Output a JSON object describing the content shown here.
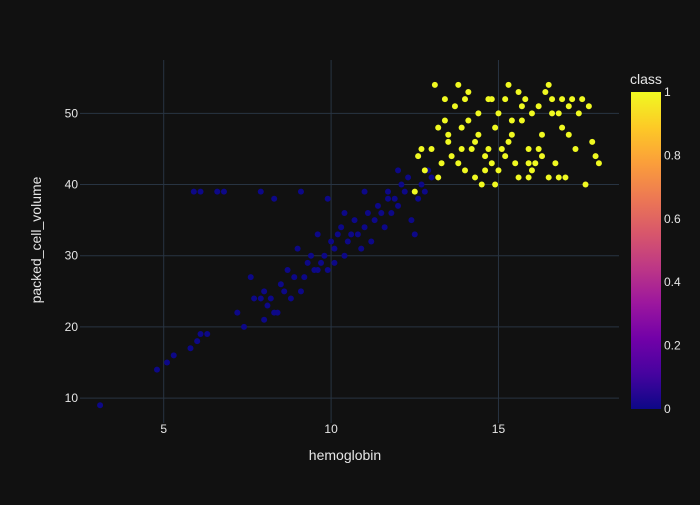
{
  "chart_data": {
    "type": "scatter",
    "title": "",
    "xlabel": "hemoglobin",
    "ylabel": "packed_cell_volume",
    "xlim": [
      2.5,
      18.6
    ],
    "ylim": [
      6.5,
      57.5
    ],
    "x_ticks": [
      5,
      10,
      15
    ],
    "y_ticks": [
      10,
      20,
      30,
      40,
      50
    ],
    "grid": true,
    "colorbar": {
      "title": "class",
      "ticks": [
        0,
        0.2,
        0.4,
        0.6,
        0.8,
        1
      ],
      "colors": [
        "#0d0887",
        "#46039f",
        "#7201a8",
        "#9c179e",
        "#bd3786",
        "#d8576b",
        "#ed7953",
        "#fb9f3a",
        "#fdca26",
        "#f0f921"
      ]
    },
    "series": [
      {
        "class": 0,
        "color": "#0d0887",
        "points": [
          [
            3.1,
            9
          ],
          [
            4.8,
            14
          ],
          [
            5.1,
            15
          ],
          [
            5.3,
            16
          ],
          [
            5.8,
            17
          ],
          [
            6.0,
            18
          ],
          [
            6.1,
            19
          ],
          [
            6.3,
            19
          ],
          [
            5.9,
            39
          ],
          [
            6.1,
            39
          ],
          [
            6.6,
            39
          ],
          [
            6.8,
            39
          ],
          [
            7.2,
            22
          ],
          [
            7.4,
            20
          ],
          [
            7.6,
            27
          ],
          [
            7.7,
            24
          ],
          [
            7.9,
            24
          ],
          [
            8.0,
            21
          ],
          [
            8.0,
            25
          ],
          [
            8.1,
            23
          ],
          [
            8.2,
            24
          ],
          [
            8.3,
            22
          ],
          [
            8.4,
            22
          ],
          [
            8.5,
            26
          ],
          [
            8.6,
            25
          ],
          [
            8.7,
            28
          ],
          [
            8.8,
            24
          ],
          [
            8.9,
            27
          ],
          [
            9.0,
            31
          ],
          [
            9.1,
            25
          ],
          [
            9.2,
            27
          ],
          [
            9.3,
            29
          ],
          [
            9.4,
            30
          ],
          [
            9.5,
            28
          ],
          [
            9.6,
            28
          ],
          [
            9.7,
            29
          ],
          [
            9.8,
            30
          ],
          [
            9.9,
            28
          ],
          [
            10.0,
            32
          ],
          [
            10.1,
            31
          ],
          [
            10.2,
            33
          ],
          [
            10.3,
            34
          ],
          [
            10.4,
            30
          ],
          [
            10.5,
            32
          ],
          [
            10.6,
            33
          ],
          [
            10.7,
            35
          ],
          [
            10.8,
            33
          ],
          [
            10.9,
            31
          ],
          [
            11.0,
            34
          ],
          [
            11.1,
            36
          ],
          [
            11.2,
            32
          ],
          [
            11.3,
            35
          ],
          [
            11.4,
            37
          ],
          [
            11.5,
            36
          ],
          [
            11.6,
            34
          ],
          [
            11.7,
            38
          ],
          [
            11.8,
            36
          ],
          [
            11.9,
            38
          ],
          [
            12.0,
            37
          ],
          [
            12.1,
            40
          ],
          [
            12.2,
            39
          ],
          [
            12.3,
            41
          ],
          [
            12.4,
            35
          ],
          [
            12.5,
            33
          ],
          [
            12.6,
            38
          ],
          [
            12.7,
            40
          ],
          [
            12.8,
            39
          ],
          [
            12.9,
            42
          ],
          [
            13.0,
            41
          ],
          [
            9.9,
            38
          ],
          [
            10.4,
            36
          ],
          [
            11.0,
            39
          ],
          [
            9.6,
            33
          ],
          [
            10.1,
            29
          ],
          [
            8.3,
            38
          ],
          [
            7.9,
            39
          ],
          [
            9.1,
            39
          ],
          [
            11.7,
            39
          ],
          [
            12.0,
            42
          ],
          [
            12.6,
            44
          ]
        ]
      },
      {
        "class": 1,
        "color": "#f0f921",
        "points": [
          [
            12.5,
            39
          ],
          [
            12.6,
            44
          ],
          [
            12.7,
            45
          ],
          [
            12.8,
            42
          ],
          [
            13.0,
            45
          ],
          [
            13.1,
            54
          ],
          [
            13.2,
            48
          ],
          [
            13.3,
            43
          ],
          [
            13.4,
            52
          ],
          [
            13.5,
            46
          ],
          [
            13.6,
            44
          ],
          [
            13.7,
            51
          ],
          [
            13.8,
            54
          ],
          [
            13.9,
            48
          ],
          [
            14.0,
            52
          ],
          [
            14.1,
            49
          ],
          [
            14.2,
            45
          ],
          [
            14.3,
            41
          ],
          [
            14.4,
            47
          ],
          [
            14.5,
            40
          ],
          [
            14.6,
            44
          ],
          [
            14.7,
            52
          ],
          [
            14.8,
            43
          ],
          [
            14.9,
            48
          ],
          [
            15.0,
            50
          ],
          [
            15.1,
            45
          ],
          [
            15.2,
            52
          ],
          [
            15.3,
            54
          ],
          [
            15.4,
            47
          ],
          [
            15.5,
            43
          ],
          [
            15.6,
            41
          ],
          [
            15.7,
            49
          ],
          [
            15.8,
            52
          ],
          [
            15.9,
            45
          ],
          [
            16.0,
            50
          ],
          [
            16.1,
            43
          ],
          [
            16.2,
            51
          ],
          [
            16.3,
            47
          ],
          [
            16.4,
            53
          ],
          [
            16.5,
            41
          ],
          [
            16.6,
            52
          ],
          [
            16.7,
            43
          ],
          [
            16.8,
            50
          ],
          [
            16.9,
            48
          ],
          [
            17.0,
            41
          ],
          [
            17.1,
            51
          ],
          [
            17.2,
            52
          ],
          [
            17.3,
            45
          ],
          [
            17.4,
            50
          ],
          [
            17.5,
            52
          ],
          [
            17.6,
            40
          ],
          [
            17.7,
            51
          ],
          [
            17.8,
            46
          ],
          [
            17.9,
            44
          ],
          [
            18.0,
            43
          ],
          [
            13.2,
            41
          ],
          [
            13.5,
            47
          ],
          [
            13.8,
            43
          ],
          [
            14.1,
            53
          ],
          [
            14.4,
            50
          ],
          [
            14.7,
            45
          ],
          [
            15.0,
            42
          ],
          [
            15.3,
            46
          ],
          [
            15.6,
            53
          ],
          [
            15.9,
            41
          ],
          [
            16.2,
            45
          ],
          [
            16.5,
            54
          ],
          [
            16.8,
            41
          ],
          [
            14.0,
            42
          ],
          [
            14.9,
            40
          ],
          [
            15.7,
            51
          ],
          [
            16.3,
            44
          ],
          [
            13.4,
            49
          ],
          [
            14.3,
            46
          ],
          [
            15.2,
            44
          ],
          [
            16.0,
            42
          ],
          [
            16.9,
            52
          ],
          [
            17.1,
            47
          ],
          [
            14.6,
            42
          ],
          [
            15.4,
            49
          ],
          [
            13.9,
            45
          ],
          [
            16.6,
            50
          ],
          [
            14.8,
            52
          ],
          [
            15.9,
            43
          ]
        ]
      }
    ]
  }
}
